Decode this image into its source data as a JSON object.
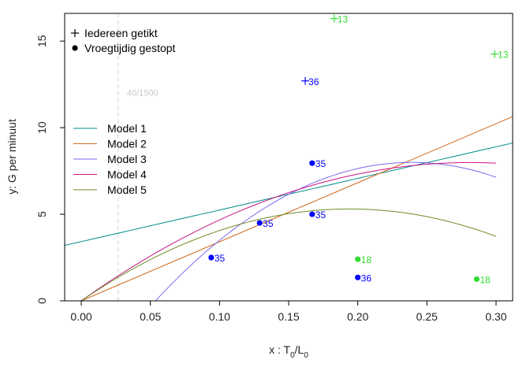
{
  "chart_data": {
    "type": "scatter",
    "title": "",
    "xlabel": {
      "main": "x : T",
      "sub1": "0",
      "sep": "/",
      "main2": "L",
      "sub2": "0"
    },
    "ylabel": "y: G per minuut",
    "xlim": [
      -0.012,
      0.312
    ],
    "ylim": [
      0,
      16.6
    ],
    "x_ticks": [
      0.0,
      0.05,
      0.1,
      0.15,
      0.2,
      0.25,
      0.3
    ],
    "x_tick_labels": [
      "0.00",
      "0.05",
      "0.10",
      "0.15",
      "0.20",
      "0.25",
      "0.30"
    ],
    "y_ticks": [
      0,
      5,
      10,
      15
    ],
    "y_tick_labels": [
      "0",
      "5",
      "10",
      "15"
    ],
    "grid": false,
    "reference_line": {
      "x": 0.0267,
      "style": "dashed",
      "color": "#d0d0d0"
    },
    "note": {
      "text": "40/1500",
      "x": 0.033,
      "y": 11.85
    },
    "legend_points": [
      {
        "symbol": "plus",
        "label": "Iedereen getikt"
      },
      {
        "symbol": "dot",
        "label": "Vroegtijdig gestopt"
      }
    ],
    "legend_placement": "top-left",
    "points": [
      {
        "symbol": "plus",
        "x": 0.162,
        "y": 12.7,
        "label": "36",
        "color": "#0000ff"
      },
      {
        "symbol": "plus",
        "x": 0.183,
        "y": 16.3,
        "label": "13",
        "color": "#33dd33"
      },
      {
        "symbol": "plus",
        "x": 0.299,
        "y": 14.25,
        "label": "13",
        "color": "#33dd33"
      },
      {
        "symbol": "dot",
        "x": 0.167,
        "y": 7.95,
        "label": "35",
        "color": "#0000ff"
      },
      {
        "symbol": "dot",
        "x": 0.167,
        "y": 5.0,
        "label": "35",
        "color": "#0000ff"
      },
      {
        "symbol": "dot",
        "x": 0.129,
        "y": 4.5,
        "label": "35",
        "color": "#0000ff"
      },
      {
        "symbol": "dot",
        "x": 0.094,
        "y": 2.5,
        "label": "35",
        "color": "#0000ff"
      },
      {
        "symbol": "dot",
        "x": 0.2,
        "y": 1.35,
        "label": "36",
        "color": "#0000ff"
      },
      {
        "symbol": "dot",
        "x": 0.2,
        "y": 2.4,
        "label": "18",
        "color": "#33dd33"
      },
      {
        "symbol": "dot",
        "x": 0.286,
        "y": 1.25,
        "label": "18",
        "color": "#33dd33"
      }
    ],
    "series": [
      {
        "name": "Model 1",
        "color": "#008b8b",
        "kind": "linear",
        "a": 3.42,
        "b": 18.25,
        "domain": [
          -0.02,
          0.32
        ]
      },
      {
        "name": "Model 2",
        "color": "#d2691e",
        "kind": "linear",
        "a": 0.0,
        "b": 34.1,
        "domain": [
          0.0,
          0.32
        ]
      },
      {
        "name": "Model 3",
        "color": "#7b68ee",
        "kind": "quadratic",
        "c0": -5.3,
        "c1": 111.2,
        "c2": -232.5,
        "domain": [
          0.042,
          0.3
        ]
      },
      {
        "name": "Model 4",
        "color": "#c71585",
        "kind": "quadratic",
        "c0": 0.0,
        "c1": 56.8,
        "c2": -101.0,
        "domain": [
          0.0,
          0.3
        ]
      },
      {
        "name": "Model 5",
        "color": "#6b8e23",
        "kind": "quadratic",
        "c0": 0.0,
        "c1": 54.7,
        "c2": -141.0,
        "domain": [
          0.0,
          0.3
        ]
      }
    ]
  }
}
